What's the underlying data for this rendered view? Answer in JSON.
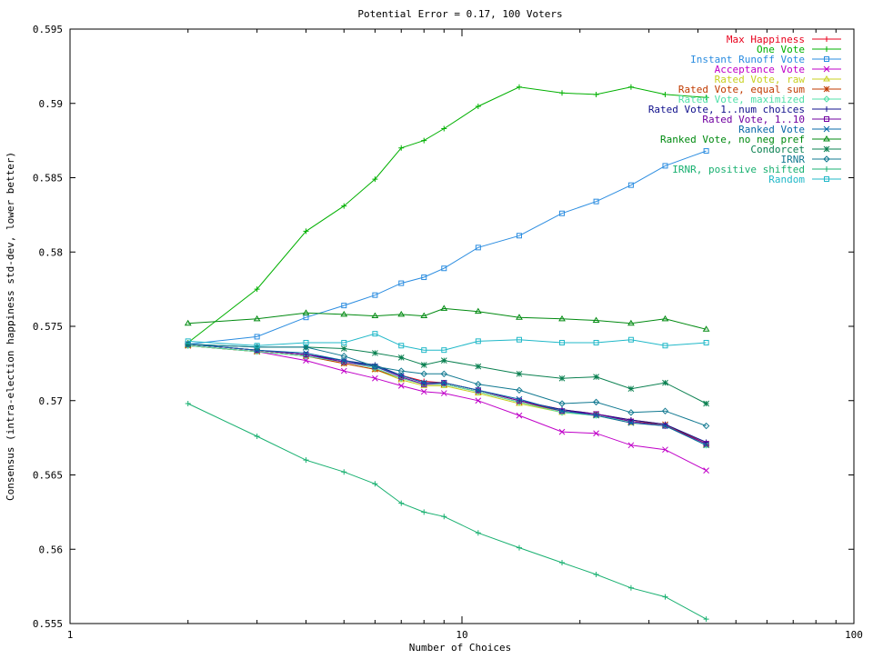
{
  "chart_data": {
    "type": "line",
    "title": "Potential Error = 0.17, 100 Voters",
    "xlabel": "Number of Choices",
    "ylabel": "Consensus (intra-election happiness std-dev, lower better)",
    "x_scale": "log",
    "xlim": [
      1,
      100
    ],
    "ylim": [
      0.555,
      0.595
    ],
    "x_ticks": [
      1,
      10,
      100
    ],
    "x_tick_labels": [
      "1",
      "10",
      "100"
    ],
    "y_ticks": [
      0.555,
      0.56,
      0.565,
      0.57,
      0.575,
      0.58,
      0.585,
      0.59,
      0.595
    ],
    "y_tick_labels": [
      "0.555",
      "0.56",
      "0.565",
      "0.57",
      "0.575",
      "0.58",
      "0.585",
      "0.59",
      "0.595"
    ],
    "grid": false,
    "legend_position": "top-right",
    "x": [
      2,
      3,
      4,
      5,
      6,
      7,
      8,
      9,
      11,
      14,
      18,
      22,
      27,
      33,
      42
    ],
    "series": [
      {
        "name": "Max Happiness",
        "color": "#e8001c",
        "marker": "plus",
        "values": [
          0.5738,
          0.5734,
          0.5731,
          0.5727,
          0.5723,
          0.5717,
          0.5713,
          0.5712,
          0.5707,
          0.57,
          0.5694,
          0.5691,
          0.5687,
          0.5684,
          0.5671
        ]
      },
      {
        "name": "One Vote",
        "color": "#00b000",
        "marker": "plus",
        "values": [
          0.5739,
          0.5775,
          0.5814,
          0.5831,
          0.5849,
          0.587,
          0.5875,
          0.5883,
          0.5898,
          0.5911,
          0.5907,
          0.5906,
          0.5911,
          0.5906,
          0.5904
        ]
      },
      {
        "name": "Instant Runoff Vote",
        "color": "#2a8ce0",
        "marker": "square",
        "values": [
          0.5738,
          0.5743,
          0.5756,
          0.5764,
          0.5771,
          0.5779,
          0.5783,
          0.5789,
          0.5803,
          0.5811,
          0.5826,
          0.5834,
          0.5845,
          0.5858,
          0.5868
        ]
      },
      {
        "name": "Acceptance Vote",
        "color": "#c000c8",
        "marker": "x",
        "values": [
          0.5737,
          0.5733,
          0.5727,
          0.572,
          0.5715,
          0.571,
          0.5706,
          0.5705,
          0.57,
          0.569,
          0.5679,
          0.5678,
          0.567,
          0.5667,
          0.5653
        ]
      },
      {
        "name": "Rated Vote, raw",
        "color": "#c8d020",
        "marker": "triangle",
        "values": [
          0.5737,
          0.5733,
          0.573,
          0.5725,
          0.5721,
          0.5714,
          0.571,
          0.571,
          0.5705,
          0.5698,
          0.5692,
          0.569,
          0.5685,
          0.5683,
          0.567
        ]
      },
      {
        "name": "Rated Vote, equal sum",
        "color": "#c03a00",
        "marker": "star",
        "values": [
          0.5737,
          0.5733,
          0.573,
          0.5725,
          0.5721,
          0.5715,
          0.5711,
          0.5711,
          0.5706,
          0.5699,
          0.5693,
          0.5691,
          0.5686,
          0.5684,
          0.5671
        ]
      },
      {
        "name": "Rated Vote, maximized",
        "color": "#50e0a8",
        "marker": "diamond",
        "values": [
          0.5737,
          0.5733,
          0.573,
          0.5726,
          0.5722,
          0.5715,
          0.5711,
          0.5711,
          0.5706,
          0.5699,
          0.5692,
          0.569,
          0.5686,
          0.5683,
          0.567
        ]
      },
      {
        "name": "Rated Vote, 1..num choices",
        "color": "#10108c",
        "marker": "plus",
        "values": [
          0.5738,
          0.5734,
          0.5731,
          0.5727,
          0.5724,
          0.5717,
          0.5712,
          0.5712,
          0.5707,
          0.57,
          0.5694,
          0.5691,
          0.5687,
          0.5684,
          0.5672
        ]
      },
      {
        "name": "Rated Vote, 1..10",
        "color": "#7000a0",
        "marker": "square",
        "values": [
          0.5738,
          0.5734,
          0.5731,
          0.5726,
          0.5723,
          0.5716,
          0.5711,
          0.5712,
          0.5707,
          0.57,
          0.5693,
          0.5691,
          0.5686,
          0.5683,
          0.5671
        ]
      },
      {
        "name": "Ranked Vote",
        "color": "#0868a8",
        "marker": "x",
        "values": [
          0.5738,
          0.5734,
          0.5732,
          0.5727,
          0.5723,
          0.5717,
          0.5712,
          0.5712,
          0.5707,
          0.5701,
          0.5693,
          0.569,
          0.5685,
          0.5683,
          0.567
        ]
      },
      {
        "name": "Ranked Vote, no neg pref",
        "color": "#008a10",
        "marker": "triangle",
        "values": [
          0.5752,
          0.5755,
          0.5759,
          0.5758,
          0.5757,
          0.5758,
          0.5757,
          0.5762,
          0.576,
          0.5756,
          0.5755,
          0.5754,
          0.5752,
          0.5755,
          0.5748
        ]
      },
      {
        "name": "Condorcet",
        "color": "#0a8050",
        "marker": "star",
        "values": [
          0.5738,
          0.5736,
          0.5736,
          0.5735,
          0.5732,
          0.5729,
          0.5724,
          0.5727,
          0.5723,
          0.5718,
          0.5715,
          0.5716,
          0.5708,
          0.5712,
          0.5698
        ]
      },
      {
        "name": "IRNR",
        "color": "#107890",
        "marker": "diamond",
        "values": [
          0.5738,
          0.5736,
          0.5736,
          0.573,
          0.5723,
          0.572,
          0.5718,
          0.5718,
          0.5711,
          0.5707,
          0.5698,
          0.5699,
          0.5692,
          0.5693,
          0.5683
        ]
      },
      {
        "name": "IRNR, positive shifted",
        "color": "#18b070",
        "marker": "plus",
        "values": [
          0.5698,
          0.5676,
          0.566,
          0.5652,
          0.5644,
          0.5631,
          0.5625,
          0.5622,
          0.5611,
          0.5601,
          0.5591,
          0.5583,
          0.5574,
          0.5568,
          0.5553
        ]
      },
      {
        "name": "Random",
        "color": "#20b8c8",
        "marker": "square",
        "values": [
          0.574,
          0.5737,
          0.5739,
          0.5739,
          0.5745,
          0.5737,
          0.5734,
          0.5734,
          0.574,
          0.5741,
          0.5739,
          0.5739,
          0.5741,
          0.5737,
          0.5739
        ]
      }
    ]
  }
}
